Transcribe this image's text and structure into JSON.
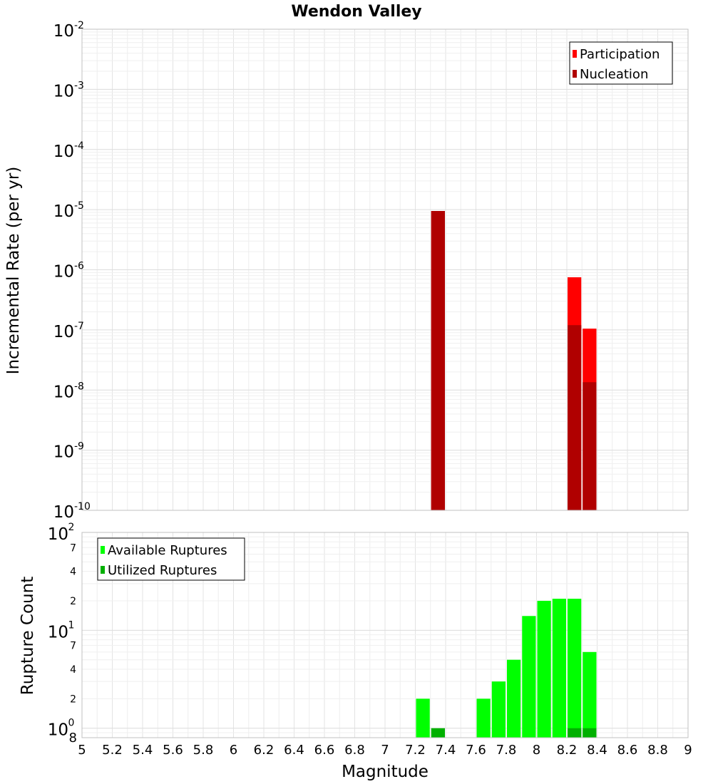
{
  "chart_data": [
    {
      "type": "bar",
      "title": "Wendon Valley",
      "xlabel": "",
      "ylabel": "Incremental Rate (per yr)",
      "y_scale": "log",
      "ylim": [
        1e-10,
        0.01
      ],
      "xlim": [
        5,
        9
      ],
      "bin_width": 0.1,
      "grid": true,
      "legend_position": "top-right",
      "y_tick_exponents": [
        "-10",
        "-9",
        "-8",
        "-7",
        "-6",
        "-5",
        "-4",
        "-3",
        "-2"
      ],
      "y_tick_base": "10",
      "series": [
        {
          "name": "Participation",
          "color": "#ff0000",
          "points": [
            {
              "x": 7.35,
              "y": 9.5e-06
            },
            {
              "x": 8.25,
              "y": 7.5e-07
            },
            {
              "x": 8.35,
              "y": 1.05e-07
            }
          ]
        },
        {
          "name": "Nucleation",
          "color": "#b00000",
          "points": [
            {
              "x": 7.35,
              "y": 9.5e-06
            },
            {
              "x": 8.25,
              "y": 1.2e-07
            },
            {
              "x": 8.35,
              "y": 1.35e-08
            }
          ]
        }
      ]
    },
    {
      "type": "bar",
      "xlabel": "Magnitude",
      "ylabel": "Rupture Count",
      "y_scale": "log",
      "ylim": [
        0.8,
        100
      ],
      "xlim": [
        5,
        9
      ],
      "bin_width": 0.1,
      "grid": true,
      "legend_position": "top-left",
      "x_ticks": [
        "5",
        "5.2",
        "5.4",
        "5.6",
        "5.8",
        "6",
        "6.2",
        "6.4",
        "6.6",
        "6.8",
        "7",
        "7.2",
        "7.4",
        "7.6",
        "7.8",
        "8",
        "8.2",
        "8.4",
        "8.6",
        "8.8",
        "9"
      ],
      "y_major_ticks": [
        {
          "value": 1,
          "base": "10",
          "exp": "0"
        },
        {
          "value": 10,
          "base": "10",
          "exp": "1"
        },
        {
          "value": 100,
          "base": "10",
          "exp": "2"
        }
      ],
      "y_minor_ticks": [
        {
          "value": 0.8,
          "label": "8"
        },
        {
          "value": 2,
          "label": "2"
        },
        {
          "value": 4,
          "label": "4"
        },
        {
          "value": 7,
          "label": "7"
        },
        {
          "value": 20,
          "label": "2"
        },
        {
          "value": 40,
          "label": "4"
        },
        {
          "value": 70,
          "label": "7"
        }
      ],
      "series": [
        {
          "name": "Available Ruptures",
          "color": "#00ff00",
          "points": [
            {
              "x": 7.25,
              "y": 2
            },
            {
              "x": 7.65,
              "y": 2
            },
            {
              "x": 7.75,
              "y": 3
            },
            {
              "x": 7.85,
              "y": 5
            },
            {
              "x": 7.95,
              "y": 14
            },
            {
              "x": 8.05,
              "y": 20
            },
            {
              "x": 8.15,
              "y": 21
            },
            {
              "x": 8.25,
              "y": 21
            },
            {
              "x": 8.35,
              "y": 6
            }
          ]
        },
        {
          "name": "Utilized Ruptures",
          "color": "#00b000",
          "points": [
            {
              "x": 7.35,
              "y": 1
            },
            {
              "x": 8.25,
              "y": 1
            },
            {
              "x": 8.35,
              "y": 1
            }
          ]
        }
      ]
    }
  ]
}
